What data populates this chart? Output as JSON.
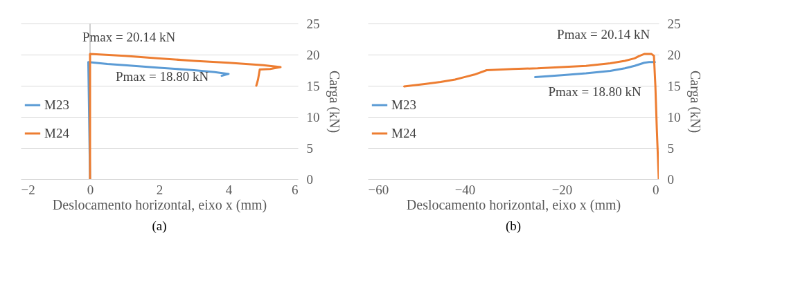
{
  "chart_data": [
    {
      "type": "line",
      "xlabel": "Deslocamento horizontal, eixo x (mm)",
      "ylabel": "Carga (kN)",
      "xlim": [
        -2,
        6
      ],
      "xticks": [
        -2,
        0,
        2,
        4,
        6
      ],
      "ylim": [
        0,
        25
      ],
      "yticks": [
        0,
        5,
        10,
        15,
        20,
        25
      ],
      "grid": "y",
      "legend": "left",
      "marker": "none",
      "line_style": "solid",
      "ref_lines": [
        {
          "axis": "x",
          "value": 0,
          "color": "#bfbfbf"
        }
      ],
      "series": [
        {
          "name": "M23",
          "color": "#5b9bd5",
          "x": [
            0,
            -0.05,
            0.5,
            1,
            2,
            3,
            3.6,
            4,
            3.8
          ],
          "values": [
            0,
            18.8,
            18.5,
            18.3,
            17.9,
            17.5,
            17.2,
            16.9,
            16.6
          ]
        },
        {
          "name": "M24",
          "color": "#ed7d31",
          "x": [
            0,
            0,
            0,
            1,
            2,
            3,
            4,
            5,
            5.5,
            5.2,
            4.9,
            4.85,
            4.8
          ],
          "values": [
            0,
            10,
            20.1,
            19.8,
            19.4,
            19.0,
            18.7,
            18.3,
            18.0,
            17.7,
            17.6,
            16,
            15
          ]
        }
      ],
      "annotations": [
        "Pmax = 20.14 kN",
        "Pmax = 18.80 kN",
        "(a)"
      ]
    },
    {
      "type": "line",
      "xlabel": "Deslocamento horizontal, eixo x (mm)",
      "ylabel": "Carga (kN)",
      "xlim": [
        -60,
        0
      ],
      "xticks": [
        -60,
        -40,
        -20,
        0
      ],
      "ylim": [
        0,
        25
      ],
      "yticks": [
        0,
        5,
        10,
        15,
        20,
        25
      ],
      "grid": "y",
      "legend": "left",
      "marker": "none",
      "line_style": "solid",
      "series": [
        {
          "name": "M23",
          "color": "#5b9bd5",
          "x": [
            -0.8,
            -2,
            -3,
            -5,
            -7,
            -10,
            -15,
            -20,
            -25.5
          ],
          "values": [
            18.8,
            18.8,
            18.7,
            18.2,
            17.8,
            17.4,
            17.0,
            16.7,
            16.4
          ]
        },
        {
          "name": "M24",
          "color": "#ed7d31",
          "x": [
            0,
            -0.4,
            -0.7,
            -1,
            -1.5,
            -3,
            -4,
            -5,
            -7,
            -10,
            -15,
            -20,
            -25,
            -30,
            -35.5,
            -38,
            -40,
            -42,
            -45,
            -48,
            -52.5
          ],
          "values": [
            0,
            8,
            15,
            19.8,
            20.1,
            20.1,
            19.8,
            19.4,
            19.0,
            18.6,
            18.2,
            18.0,
            17.8,
            17.7,
            17.5,
            16.8,
            16.4,
            16.0,
            15.6,
            15.3,
            14.9
          ]
        }
      ],
      "annotations": [
        "Pmax = 20.14 kN",
        "Pmax = 18.80 kN",
        "(b)"
      ]
    }
  ]
}
